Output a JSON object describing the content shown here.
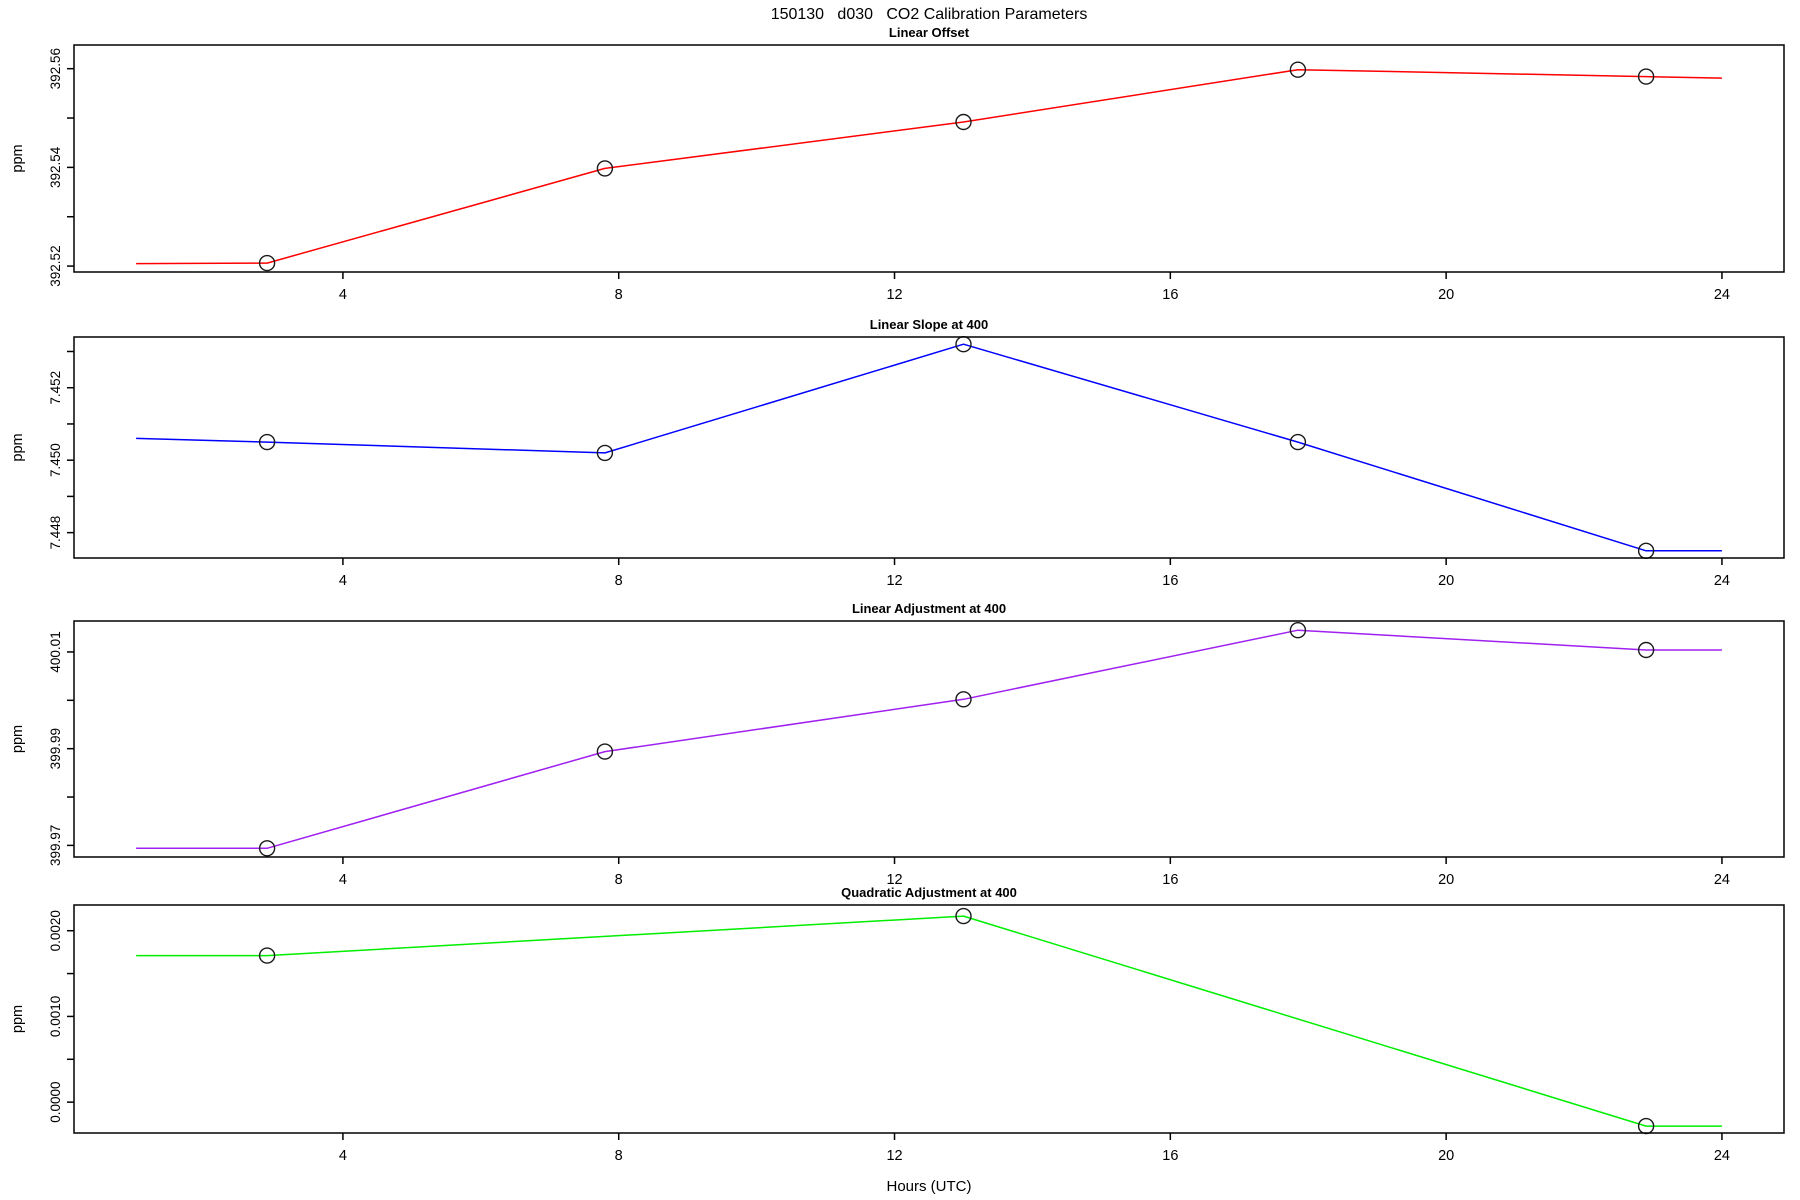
{
  "title": "150130   d030   CO2 Calibration Parameters",
  "xlabel": "Hours (UTC)",
  "chart_data": {
    "type": "line",
    "title": "150130   d030   CO2 Calibration Parameters",
    "xlabel": "Hours (UTC)",
    "xlim": [
      0.1,
      24.9
    ],
    "xticks": [
      "4",
      "8",
      "12",
      "16",
      "20",
      "24"
    ],
    "xtick_values": [
      4,
      8,
      12,
      16,
      20,
      24
    ],
    "marker_style": "open-circle",
    "grid": false,
    "panels": [
      {
        "title": "Linear Offset",
        "ylabel": "ppm",
        "color": "#ff0000",
        "ylim": [
          392.5188,
          392.5648
        ],
        "yticks": [
          {
            "v": 392.52,
            "label": "392.52"
          },
          {
            "v": 392.53,
            "label": ""
          },
          {
            "v": 392.54,
            "label": "392.54"
          },
          {
            "v": 392.55,
            "label": ""
          },
          {
            "v": 392.56,
            "label": "392.56"
          }
        ],
        "hours": [
          1.0,
          2.9,
          7.8,
          13.0,
          17.85,
          22.9,
          24.0
        ],
        "values": [
          392.5205,
          392.5206,
          392.5398,
          392.5492,
          392.5598,
          392.5584,
          392.5581
        ],
        "marker_hours": [
          2.9,
          7.8,
          13.0,
          17.85,
          22.9
        ],
        "marker_values": [
          392.5206,
          392.5398,
          392.5492,
          392.5598,
          392.5584
        ]
      },
      {
        "title": "Linear Slope at 400",
        "ylabel": "ppm",
        "color": "#0000ff",
        "ylim": [
          7.4473,
          7.4534
        ],
        "yticks": [
          {
            "v": 7.448,
            "label": "7.448"
          },
          {
            "v": 7.449,
            "label": ""
          },
          {
            "v": 7.45,
            "label": "7.450"
          },
          {
            "v": 7.451,
            "label": ""
          },
          {
            "v": 7.452,
            "label": "7.452"
          },
          {
            "v": 7.453,
            "label": ""
          }
        ],
        "hours": [
          1.0,
          2.9,
          7.8,
          13.0,
          17.85,
          22.9,
          24.0
        ],
        "values": [
          7.4506,
          7.4505,
          7.4502,
          7.4532,
          7.4505,
          7.4475,
          7.4475
        ],
        "marker_hours": [
          2.9,
          7.8,
          13.0,
          17.85,
          22.9
        ],
        "marker_values": [
          7.4505,
          7.4502,
          7.4532,
          7.4505,
          7.4475
        ]
      },
      {
        "title": "Linear Adjustment at 400",
        "ylabel": "ppm",
        "color": "#a020f0",
        "ylim": [
          399.9676,
          400.0164
        ],
        "yticks": [
          {
            "v": 399.97,
            "label": "399.97"
          },
          {
            "v": 399.98,
            "label": ""
          },
          {
            "v": 399.99,
            "label": "399.99"
          },
          {
            "v": 400.0,
            "label": ""
          },
          {
            "v": 400.01,
            "label": "400.01"
          }
        ],
        "hours": [
          1.0,
          2.9,
          7.8,
          13.0,
          17.85,
          22.9,
          24.0
        ],
        "values": [
          399.9694,
          399.9694,
          399.9894,
          400.0002,
          400.0145,
          400.0104,
          400.0104
        ],
        "marker_hours": [
          2.9,
          7.8,
          13.0,
          17.85,
          22.9
        ],
        "marker_values": [
          399.9694,
          399.9894,
          400.0002,
          400.0145,
          400.0104
        ]
      },
      {
        "title": "Quadratic Adjustment at 400",
        "ylabel": "ppm",
        "color": "#00ee00",
        "ylim": [
          -0.00036,
          0.0023
        ],
        "yticks": [
          {
            "v": 0.0,
            "label": "0.0000"
          },
          {
            "v": 0.0005,
            "label": ""
          },
          {
            "v": 0.001,
            "label": "0.0010"
          },
          {
            "v": 0.0015,
            "label": ""
          },
          {
            "v": 0.002,
            "label": "0.0020"
          }
        ],
        "hours": [
          1.0,
          2.9,
          13.0,
          22.9,
          24.0
        ],
        "values": [
          0.00171,
          0.00171,
          0.00217,
          -0.00028,
          -0.00028
        ],
        "marker_hours": [
          2.9,
          13.0,
          22.9
        ],
        "marker_values": [
          0.00171,
          0.00217,
          -0.00028
        ]
      }
    ]
  }
}
